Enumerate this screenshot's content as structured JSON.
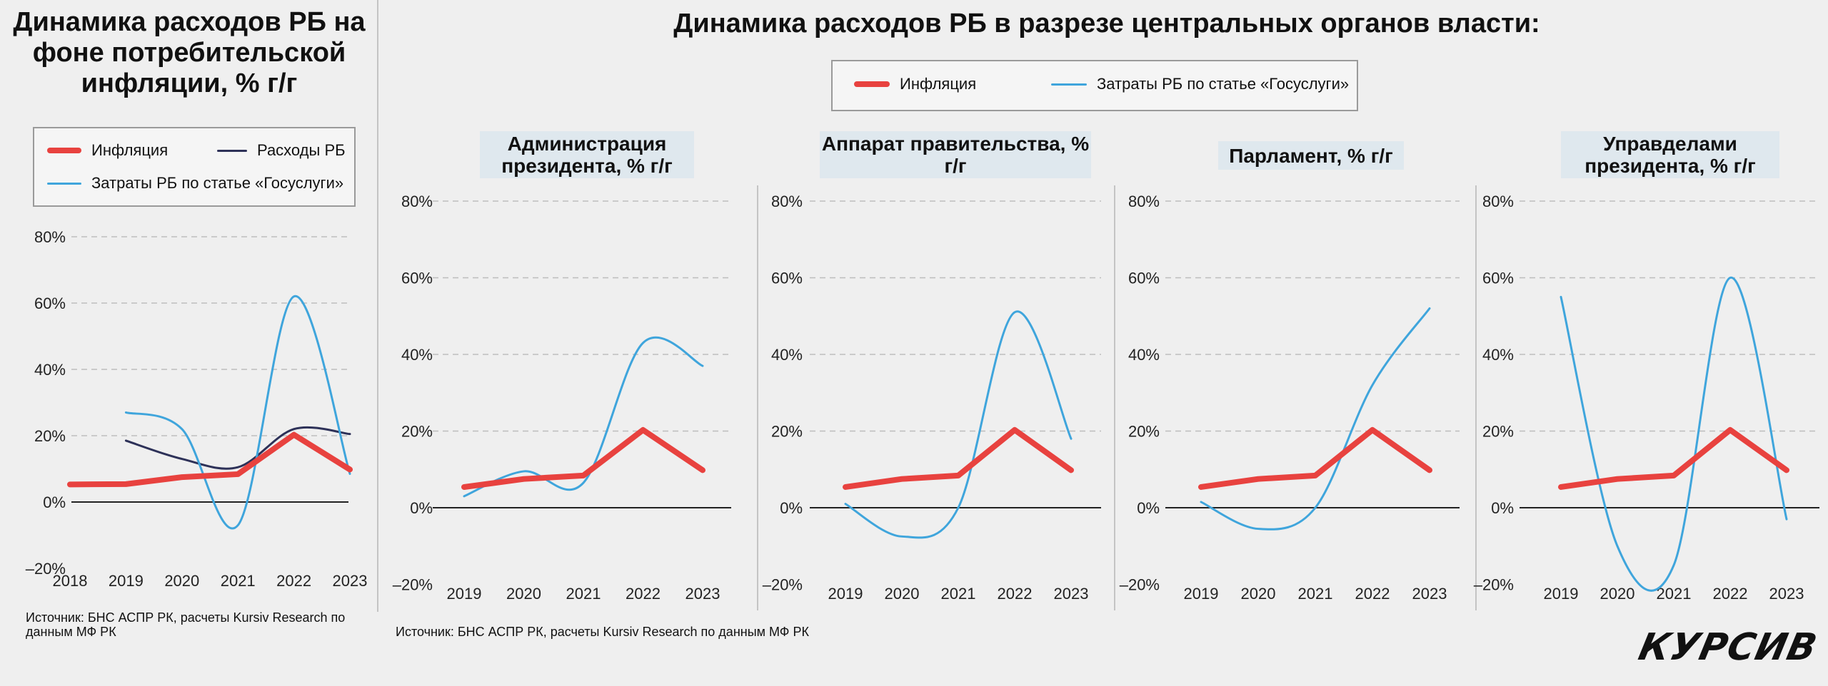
{
  "left": {
    "title": "Динамика расходов РБ на фоне потребительской инфляции, % г/г",
    "legend": [
      "Инфляция",
      "Расходы РБ",
      "Затраты РБ по статье «Госуслуги»"
    ],
    "source": "Источник: БНС АСПР РК, расчеты Kursiv Research по данным МФ РК"
  },
  "main": {
    "title": "Динамика расходов РБ в разрезе центральных органов власти:",
    "legend": [
      "Инфляция",
      "Затраты РБ по статье «Госуслуги»"
    ],
    "source": "Источник: БНС АСПР РК, расчеты Kursiv Research по данным МФ РК",
    "panel_titles": [
      "Администрация президента, % г/г",
      "Аппарат правительства, % г/г",
      "Парламент, % г/г",
      "Управделами президента, % г/г"
    ]
  },
  "logo": "КУРСИВ",
  "colors": {
    "inflation": "#e8423f",
    "spending": "#2d3158",
    "gosuslugi": "#3fa5dc"
  },
  "chart_data": [
    {
      "type": "line",
      "title": "Динамика расходов РБ на фоне потребительской инфляции, % г/г",
      "x": [
        "2018",
        "2019",
        "2020",
        "2021",
        "2022",
        "2023"
      ],
      "yticks": [
        "80%",
        "60%",
        "40%",
        "20%",
        "0%",
        "–20%"
      ],
      "ylim": [
        -20,
        80
      ],
      "grid": "dashed",
      "legend_position": "top",
      "series": [
        {
          "name": "Инфляция",
          "color": "#e8423f",
          "values": [
            5.3,
            5.4,
            7.5,
            8.4,
            20.3,
            9.8
          ]
        },
        {
          "name": "Расходы РБ",
          "color": "#2d3158",
          "values": [
            null,
            18.5,
            13,
            10.5,
            22,
            20.5
          ]
        },
        {
          "name": "Затраты РБ по статье «Госуслуги»",
          "color": "#3fa5dc",
          "values": [
            null,
            27,
            22,
            -7,
            62,
            8.5
          ]
        }
      ]
    },
    {
      "type": "line",
      "title": "Администрация президента, % г/г",
      "x": [
        "2019",
        "2020",
        "2021",
        "2022",
        "2023"
      ],
      "yticks": [
        "80%",
        "60%",
        "40%",
        "20%",
        "0%",
        "–20%"
      ],
      "ylim": [
        -20,
        80
      ],
      "grid": "dashed",
      "series": [
        {
          "name": "Инфляция",
          "color": "#e8423f",
          "values": [
            5.4,
            7.5,
            8.4,
            20.3,
            9.8
          ]
        },
        {
          "name": "Затраты РБ по статье «Госуслуги»",
          "color": "#3fa5dc",
          "values": [
            3,
            9.5,
            6.5,
            43,
            37
          ]
        }
      ]
    },
    {
      "type": "line",
      "title": "Аппарат правительства, % г/г",
      "x": [
        "2019",
        "2020",
        "2021",
        "2022",
        "2023"
      ],
      "yticks": [
        "80%",
        "60%",
        "40%",
        "20%",
        "0%",
        "–20%"
      ],
      "ylim": [
        -20,
        80
      ],
      "grid": "dashed",
      "series": [
        {
          "name": "Инфляция",
          "color": "#e8423f",
          "values": [
            5.4,
            7.5,
            8.4,
            20.3,
            9.8
          ]
        },
        {
          "name": "Затраты РБ по статье «Госуслуги»",
          "color": "#3fa5dc",
          "values": [
            1,
            -7.5,
            0,
            51,
            18
          ]
        }
      ]
    },
    {
      "type": "line",
      "title": "Парламент, % г/г",
      "x": [
        "2019",
        "2020",
        "2021",
        "2022",
        "2023"
      ],
      "yticks": [
        "80%",
        "60%",
        "40%",
        "20%",
        "0%",
        "–20%"
      ],
      "ylim": [
        -20,
        80
      ],
      "grid": "dashed",
      "series": [
        {
          "name": "Инфляция",
          "color": "#e8423f",
          "values": [
            5.4,
            7.5,
            8.4,
            20.3,
            9.8
          ]
        },
        {
          "name": "Затраты РБ по статье «Госуслуги»",
          "color": "#3fa5dc",
          "values": [
            1.5,
            -5.5,
            0,
            32,
            52
          ]
        }
      ]
    },
    {
      "type": "line",
      "title": "Управделами президента, % г/г",
      "x": [
        "2019",
        "2020",
        "2021",
        "2022",
        "2023"
      ],
      "yticks": [
        "80%",
        "60%",
        "40%",
        "20%",
        "0%",
        "–20%"
      ],
      "ylim": [
        -20,
        80
      ],
      "grid": "dashed",
      "series": [
        {
          "name": "Инфляция",
          "color": "#e8423f",
          "values": [
            5.4,
            7.5,
            8.4,
            20.3,
            9.8
          ]
        },
        {
          "name": "Затраты РБ по статье «Госуслуги»",
          "color": "#3fa5dc",
          "values": [
            55,
            -10,
            -15,
            60,
            -3
          ]
        }
      ]
    }
  ]
}
